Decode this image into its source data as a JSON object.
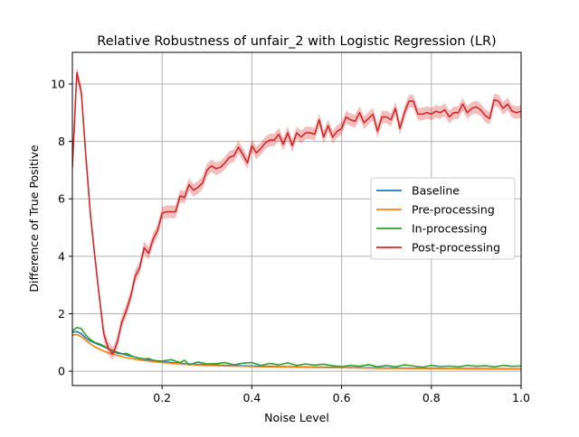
{
  "chart_data": {
    "type": "line",
    "title": "Relative Robustness of unfair_2 with Logistic Regression (LR)",
    "xlabel": "Noise Level",
    "ylabel": "Difference of True Positive",
    "xlim": [
      0.0,
      1.0
    ],
    "ylim": [
      -0.5,
      11.1
    ],
    "xticks": [
      0.2,
      0.4,
      0.6,
      0.8,
      1.0
    ],
    "xtick_labels": [
      "0.2",
      "0.4",
      "0.6",
      "0.8",
      "1.0"
    ],
    "yticks": [
      0,
      2,
      4,
      6,
      8,
      10
    ],
    "ytick_labels": [
      "0",
      "2",
      "4",
      "6",
      "8",
      "10"
    ],
    "grid": true,
    "legend_position": "center-right",
    "series": [
      {
        "name": "Baseline",
        "color": "#1f77b4",
        "x": [
          0.0,
          0.01,
          0.02,
          0.03,
          0.04,
          0.05,
          0.06,
          0.07,
          0.08,
          0.09,
          0.1,
          0.12,
          0.15,
          0.2,
          0.25,
          0.3,
          0.4,
          0.5,
          0.6,
          0.7,
          0.8,
          0.9,
          1.0
        ],
        "y": [
          1.35,
          1.38,
          1.3,
          1.15,
          1.05,
          0.98,
          0.92,
          0.85,
          0.78,
          0.72,
          0.66,
          0.56,
          0.45,
          0.33,
          0.26,
          0.22,
          0.18,
          0.15,
          0.13,
          0.11,
          0.1,
          0.09,
          0.08
        ]
      },
      {
        "name": "Pre-processing",
        "color": "#ff7f0e",
        "x": [
          0.0,
          0.01,
          0.02,
          0.03,
          0.04,
          0.05,
          0.06,
          0.07,
          0.08,
          0.09,
          0.1,
          0.12,
          0.15,
          0.2,
          0.25,
          0.3,
          0.4,
          0.5,
          0.6,
          0.7,
          0.8,
          0.9,
          1.0
        ],
        "y": [
          1.25,
          1.28,
          1.2,
          1.07,
          0.95,
          0.85,
          0.77,
          0.7,
          0.64,
          0.59,
          0.55,
          0.47,
          0.39,
          0.3,
          0.24,
          0.2,
          0.16,
          0.14,
          0.12,
          0.1,
          0.09,
          0.08,
          0.08
        ]
      },
      {
        "name": "In-processing",
        "color": "#2ca02c",
        "x": [
          0.0,
          0.01,
          0.02,
          0.03,
          0.04,
          0.05,
          0.06,
          0.07,
          0.08,
          0.09,
          0.1,
          0.11,
          0.12,
          0.13,
          0.14,
          0.15,
          0.16,
          0.17,
          0.18,
          0.19,
          0.2,
          0.22,
          0.24,
          0.25,
          0.26,
          0.28,
          0.3,
          0.32,
          0.34,
          0.36,
          0.38,
          0.4,
          0.42,
          0.44,
          0.46,
          0.48,
          0.5,
          0.52,
          0.54,
          0.56,
          0.58,
          0.6,
          0.62,
          0.64,
          0.66,
          0.68,
          0.7,
          0.72,
          0.74,
          0.76,
          0.78,
          0.8,
          0.82,
          0.84,
          0.86,
          0.88,
          0.9,
          0.92,
          0.94,
          0.96,
          0.98,
          1.0
        ],
        "y": [
          1.4,
          1.52,
          1.48,
          1.25,
          1.1,
          1.0,
          0.95,
          0.88,
          0.78,
          0.7,
          0.62,
          0.6,
          0.62,
          0.55,
          0.48,
          0.45,
          0.42,
          0.44,
          0.38,
          0.36,
          0.35,
          0.4,
          0.3,
          0.38,
          0.22,
          0.32,
          0.25,
          0.26,
          0.3,
          0.22,
          0.28,
          0.3,
          0.2,
          0.27,
          0.22,
          0.29,
          0.2,
          0.25,
          0.21,
          0.24,
          0.19,
          0.16,
          0.2,
          0.17,
          0.23,
          0.15,
          0.2,
          0.15,
          0.22,
          0.18,
          0.14,
          0.2,
          0.16,
          0.18,
          0.15,
          0.2,
          0.17,
          0.19,
          0.15,
          0.2,
          0.17,
          0.18
        ]
      },
      {
        "name": "Post-processing",
        "color": "#d62728",
        "band_color": "#d62728",
        "x": [
          0.0,
          0.01,
          0.02,
          0.03,
          0.04,
          0.05,
          0.06,
          0.07,
          0.08,
          0.09,
          0.1,
          0.11,
          0.12,
          0.13,
          0.14,
          0.15,
          0.16,
          0.17,
          0.18,
          0.19,
          0.2,
          0.21,
          0.22,
          0.23,
          0.24,
          0.25,
          0.26,
          0.27,
          0.28,
          0.29,
          0.3,
          0.31,
          0.32,
          0.33,
          0.34,
          0.35,
          0.36,
          0.37,
          0.38,
          0.39,
          0.4,
          0.41,
          0.42,
          0.43,
          0.44,
          0.45,
          0.46,
          0.47,
          0.48,
          0.49,
          0.5,
          0.51,
          0.52,
          0.53,
          0.54,
          0.55,
          0.56,
          0.57,
          0.58,
          0.59,
          0.6,
          0.61,
          0.62,
          0.63,
          0.64,
          0.65,
          0.66,
          0.67,
          0.68,
          0.69,
          0.7,
          0.71,
          0.72,
          0.73,
          0.74,
          0.75,
          0.76,
          0.77,
          0.78,
          0.79,
          0.8,
          0.81,
          0.82,
          0.83,
          0.84,
          0.85,
          0.86,
          0.87,
          0.88,
          0.89,
          0.9,
          0.91,
          0.92,
          0.93,
          0.94,
          0.95,
          0.96,
          0.97,
          0.98,
          0.99,
          1.0
        ],
        "y": [
          7.1,
          10.4,
          9.7,
          7.5,
          5.5,
          4.0,
          2.6,
          1.3,
          0.8,
          0.6,
          1.0,
          1.7,
          2.1,
          2.6,
          3.3,
          3.6,
          4.3,
          4.1,
          4.6,
          4.9,
          5.5,
          5.55,
          5.55,
          5.55,
          6.1,
          6.05,
          6.5,
          6.3,
          6.4,
          6.55,
          7.0,
          7.15,
          7.05,
          7.1,
          7.25,
          7.45,
          7.5,
          7.8,
          7.55,
          7.25,
          7.85,
          7.6,
          7.75,
          7.95,
          8.05,
          8.05,
          8.25,
          7.9,
          8.3,
          7.85,
          8.3,
          8.15,
          8.3,
          8.3,
          8.25,
          8.75,
          8.15,
          8.55,
          8.15,
          8.35,
          8.45,
          8.85,
          8.75,
          8.7,
          9.0,
          8.65,
          8.8,
          8.95,
          8.35,
          8.85,
          8.85,
          8.75,
          9.15,
          8.45,
          9.0,
          9.4,
          9.4,
          8.95,
          8.95,
          9.0,
          8.95,
          9.05,
          9.0,
          9.1,
          8.85,
          9.0,
          9.0,
          9.3,
          9.0,
          9.15,
          9.2,
          9.1,
          8.9,
          8.8,
          9.45,
          9.4,
          9.15,
          9.3,
          9.05,
          9.0,
          9.05
        ],
        "band": 0.22
      }
    ]
  }
}
